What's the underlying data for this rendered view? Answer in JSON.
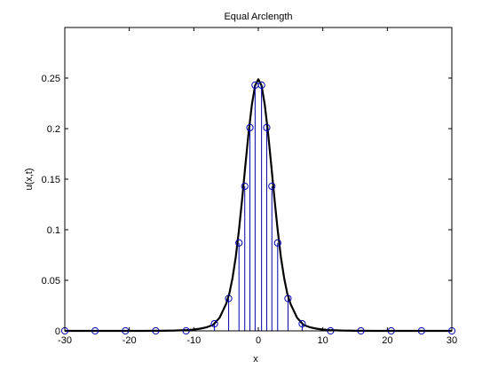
{
  "chart_data": {
    "type": "line",
    "title": "Equal Arclength",
    "xlabel": "x",
    "ylabel": "u(x,t)",
    "xlim": [
      -30,
      30
    ],
    "ylim": [
      0,
      0.3
    ],
    "x_ticks": [
      -30,
      -20,
      -10,
      0,
      10,
      20,
      30
    ],
    "x_tick_labels": [
      "-30",
      "-20",
      "-10",
      "0",
      "10",
      "20",
      "30"
    ],
    "y_ticks": [
      0,
      0.05,
      0.1,
      0.15,
      0.2,
      0.25
    ],
    "y_tick_labels": [
      "0",
      "0.05",
      "0.1",
      "0.15",
      "0.2",
      "0.25"
    ],
    "grid": false,
    "series": [
      {
        "kind": "curve",
        "color": "#000000",
        "x": [
          -30,
          -27,
          -24,
          -21,
          -18,
          -15,
          -13,
          -11,
          -10,
          -9,
          -8,
          -7,
          -6,
          -5,
          -4.5,
          -4,
          -3.5,
          -3,
          -2.5,
          -2,
          -1.5,
          -1,
          -0.5,
          0,
          0.5,
          1,
          1.5,
          2,
          2.5,
          3,
          3.5,
          4,
          4.5,
          5,
          6,
          7,
          8,
          9,
          10,
          11,
          13,
          15,
          18,
          21,
          24,
          27,
          30
        ],
        "y": [
          0,
          0,
          0,
          0,
          0,
          0.0001,
          0.0003,
          0.0008,
          0.0013,
          0.0022,
          0.0036,
          0.0059,
          0.0131,
          0.0266,
          0.0367,
          0.0523,
          0.073,
          0.0998,
          0.1307,
          0.1642,
          0.1964,
          0.2236,
          0.2426,
          0.2488,
          0.2426,
          0.2236,
          0.1964,
          0.1642,
          0.1307,
          0.0998,
          0.073,
          0.0523,
          0.0367,
          0.0266,
          0.0131,
          0.0059,
          0.0036,
          0.0022,
          0.0013,
          0.0008,
          0.0003,
          0.0001,
          0,
          0,
          0,
          0,
          0
        ]
      },
      {
        "kind": "stem",
        "color": "#0000aa",
        "x": [
          -30,
          -25.3,
          -20.6,
          -15.9,
          -11.2,
          -6.8,
          -4.6,
          -3.0,
          -2.1,
          -1.3,
          -0.5,
          0.5,
          1.3,
          2.1,
          3.0,
          4.6,
          6.8,
          11.2,
          15.9,
          20.6,
          25.3,
          30
        ],
        "y": [
          0,
          0,
          0,
          0,
          0,
          0.007,
          0.032,
          0.087,
          0.143,
          0.201,
          0.243,
          0.243,
          0.201,
          0.143,
          0.087,
          0.032,
          0.007,
          0,
          0,
          0,
          0,
          0
        ]
      }
    ]
  }
}
